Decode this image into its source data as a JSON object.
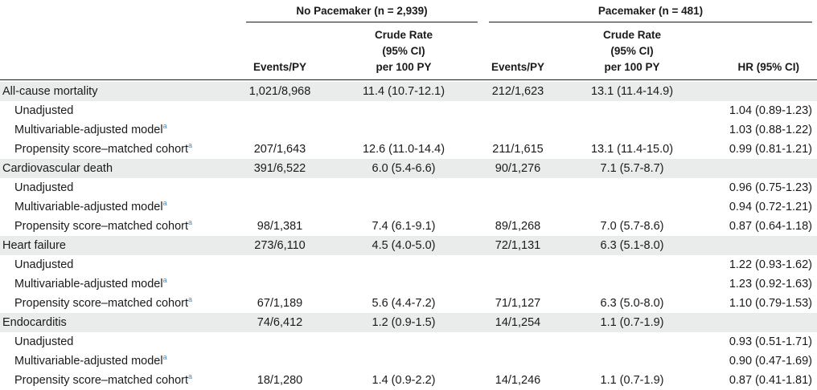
{
  "groups": {
    "no_pacemaker": "No Pacemaker (n = 2,939)",
    "pacemaker": "Pacemaker (n = 481)"
  },
  "columns": {
    "events_py": "Events/PY",
    "crude_rate_l1": "Crude Rate",
    "crude_rate_l2": "(95% CI)",
    "crude_rate_l3": "per 100 PY",
    "hr": "HR (95% CI)"
  },
  "footnote_mark": "a",
  "sections": [
    {
      "main": {
        "label": "All-cause mortality",
        "np_events": "1,021/8,968",
        "np_rate": "11.4 (10.7-12.1)",
        "p_events": "212/1,623",
        "p_rate": "13.1 (11.4-14.9)"
      },
      "unadj": {
        "label": "Unadjusted",
        "hr": "1.04 (0.89-1.23)"
      },
      "multi": {
        "label": "Multivariable-adjusted model",
        "hr": "1.03 (0.88-1.22)"
      },
      "psm": {
        "label": "Propensity score–matched cohort",
        "np_events": "207/1,643",
        "np_rate": "12.6 (11.0-14.4)",
        "p_events": "211/1,615",
        "p_rate": "13.1 (11.4-15.0)",
        "hr": "0.99 (0.81-1.21)"
      }
    },
    {
      "main": {
        "label": "Cardiovascular death",
        "np_events": "391/6,522",
        "np_rate": "6.0 (5.4-6.6)",
        "p_events": "90/1,276",
        "p_rate": "7.1 (5.7-8.7)"
      },
      "unadj": {
        "label": "Unadjusted",
        "hr": "0.96 (0.75-1.23)"
      },
      "multi": {
        "label": "Multivariable-adjusted model",
        "hr": "0.94 (0.72-1.21)"
      },
      "psm": {
        "label": "Propensity score–matched cohort",
        "np_events": "98/1,381",
        "np_rate": "7.4 (6.1-9.1)",
        "p_events": "89/1,268",
        "p_rate": "7.0 (5.7-8.6)",
        "hr": "0.87 (0.64-1.18)"
      }
    },
    {
      "main": {
        "label": "Heart failure",
        "np_events": "273/6,110",
        "np_rate": "4.5 (4.0-5.0)",
        "p_events": "72/1,131",
        "p_rate": "6.3 (5.1-8.0)"
      },
      "unadj": {
        "label": "Unadjusted",
        "hr": "1.22 (0.93-1.62)"
      },
      "multi": {
        "label": "Multivariable-adjusted model",
        "hr": "1.23 (0.92-1.63)"
      },
      "psm": {
        "label": "Propensity score–matched cohort",
        "np_events": "67/1,189",
        "np_rate": "5.6 (4.4-7.2)",
        "p_events": "71/1,127",
        "p_rate": "6.3 (5.0-8.0)",
        "hr": "1.10 (0.79-1.53)"
      }
    },
    {
      "main": {
        "label": "Endocarditis",
        "np_events": "74/6,412",
        "np_rate": "1.2 (0.9-1.5)",
        "p_events": "14/1,254",
        "p_rate": "1.1 (0.7-1.9)"
      },
      "unadj": {
        "label": "Unadjusted",
        "hr": "0.93 (0.51-1.71)"
      },
      "multi": {
        "label": "Multivariable-adjusted model",
        "hr": "0.90 (0.47-1.69)"
      },
      "psm": {
        "label": "Propensity score–matched cohort",
        "np_events": "18/1,280",
        "np_rate": "1.4 (0.9-2.2)",
        "p_events": "14/1,246",
        "p_rate": "1.1 (0.7-1.9)",
        "hr": "0.87 (0.41-1.81)"
      }
    }
  ]
}
